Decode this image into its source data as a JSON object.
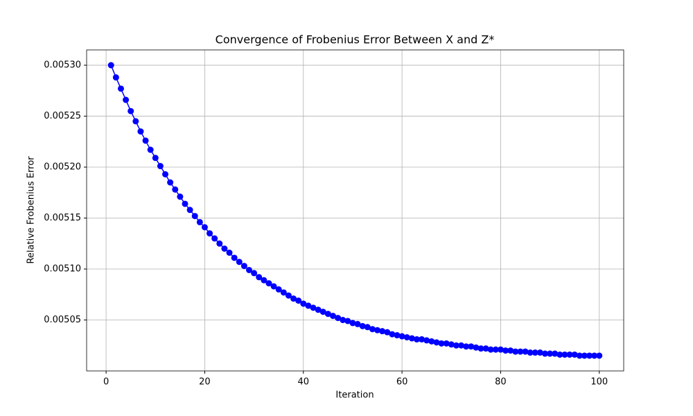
{
  "chart_data": {
    "type": "line",
    "title": "Convergence of Frobenius Error Between X and Z*",
    "xlabel": "Iteration",
    "ylabel": "Relative Frobenius Error",
    "x": [
      1,
      2,
      3,
      4,
      5,
      6,
      7,
      8,
      9,
      10,
      11,
      12,
      13,
      14,
      15,
      16,
      17,
      18,
      19,
      20,
      21,
      22,
      23,
      24,
      25,
      26,
      27,
      28,
      29,
      30,
      31,
      32,
      33,
      34,
      35,
      36,
      37,
      38,
      39,
      40,
      41,
      42,
      43,
      44,
      45,
      46,
      47,
      48,
      49,
      50,
      51,
      52,
      53,
      54,
      55,
      56,
      57,
      58,
      59,
      60,
      61,
      62,
      63,
      64,
      65,
      66,
      67,
      68,
      69,
      70,
      71,
      72,
      73,
      74,
      75,
      76,
      77,
      78,
      79,
      80,
      81,
      82,
      83,
      84,
      85,
      86,
      87,
      88,
      89,
      90,
      91,
      92,
      93,
      94,
      95,
      96,
      97,
      98,
      99,
      100
    ],
    "series": [
      {
        "color": "#0000ff",
        "values": [
          0.0053,
          0.005288,
          0.005277,
          0.005266,
          0.005255,
          0.005245,
          0.005235,
          0.005226,
          0.005217,
          0.005209,
          0.005201,
          0.005193,
          0.005185,
          0.005178,
          0.005171,
          0.005164,
          0.005158,
          0.005152,
          0.005146,
          0.005141,
          0.005135,
          0.00513,
          0.005125,
          0.00512,
          0.005116,
          0.005111,
          0.005107,
          0.005103,
          0.005099,
          0.005096,
          0.005092,
          0.005089,
          0.005086,
          0.005083,
          0.00508,
          0.005077,
          0.005074,
          0.005071,
          0.005069,
          0.005066,
          0.005064,
          0.005062,
          0.00506,
          0.005058,
          0.005056,
          0.005054,
          0.005052,
          0.00505,
          0.005049,
          0.005047,
          0.005046,
          0.005044,
          0.005043,
          0.005041,
          0.00504,
          0.005039,
          0.005038,
          0.005036,
          0.005035,
          0.005034,
          0.005033,
          0.005032,
          0.005031,
          0.005031,
          0.00503,
          0.005029,
          0.005028,
          0.005027,
          0.005027,
          0.005026,
          0.005025,
          0.005025,
          0.005024,
          0.005024,
          0.005023,
          0.005022,
          0.005022,
          0.005021,
          0.005021,
          0.005021,
          0.00502,
          0.00502,
          0.005019,
          0.005019,
          0.005019,
          0.005018,
          0.005018,
          0.005018,
          0.005017,
          0.005017,
          0.005017,
          0.005016,
          0.005016,
          0.005016,
          0.005016,
          0.005015,
          0.005015,
          0.005015,
          0.005015,
          0.005015
        ]
      }
    ],
    "xlim": [
      -3.95,
      104.95
    ],
    "ylim": [
      0.005,
      0.005315
    ],
    "xticks": [
      0,
      20,
      40,
      60,
      80,
      100
    ],
    "yticks": [
      0.00505,
      {
        "value": 0.0051,
        "label": "0.00510"
      },
      0.00515,
      {
        "value": 0.0052,
        "label": "0.00520"
      },
      0.00525,
      {
        "value": 0.0053,
        "label": "0.00530"
      }
    ],
    "grid": true
  }
}
